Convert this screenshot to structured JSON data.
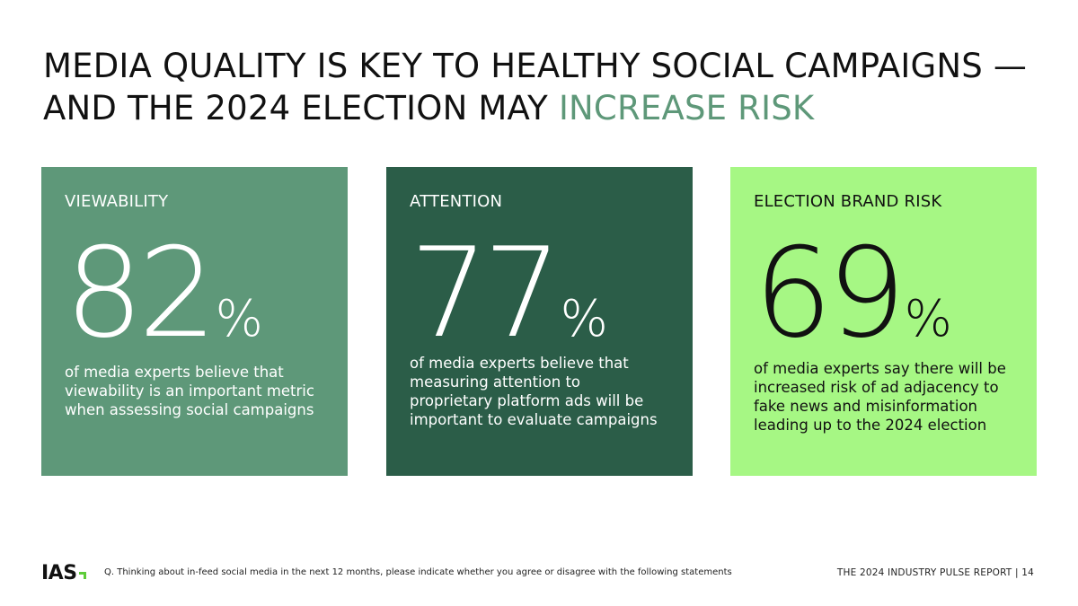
{
  "title": {
    "line1": "MEDIA QUALITY IS KEY TO HEALTHY SOCIAL CAMPAIGNS —",
    "line2_main": "AND THE 2024 ELECTION MAY ",
    "line2_accent": "INCREASE RISK"
  },
  "colors": {
    "accent_text": "#5e9879",
    "card1": "#5e9879",
    "card2": "#2b5d48",
    "card3": "#a6f784"
  },
  "cards": [
    {
      "label": "VIEWABILITY",
      "number": "82",
      "percent_sign": "%",
      "description": "of media experts believe that viewability is an important metric when assessing social campaigns"
    },
    {
      "label": "ATTENTION",
      "number": "77",
      "percent_sign": "%",
      "description": "of media experts believe that measuring attention to proprietary platform ads will be important to evaluate campaigns"
    },
    {
      "label": "ELECTION BRAND RISK",
      "number": "69",
      "percent_sign": "%",
      "description": "of media experts say there will be increased risk of ad adjacency to fake news and misinformation leading up to the 2024 election"
    }
  ],
  "footer": {
    "logo": "IAS",
    "question": "Q. Thinking about in-feed social media in the next 12 months, please indicate whether you agree or disagree with the following statements",
    "report": "THE 2024 INDUSTRY PULSE REPORT | 14"
  }
}
